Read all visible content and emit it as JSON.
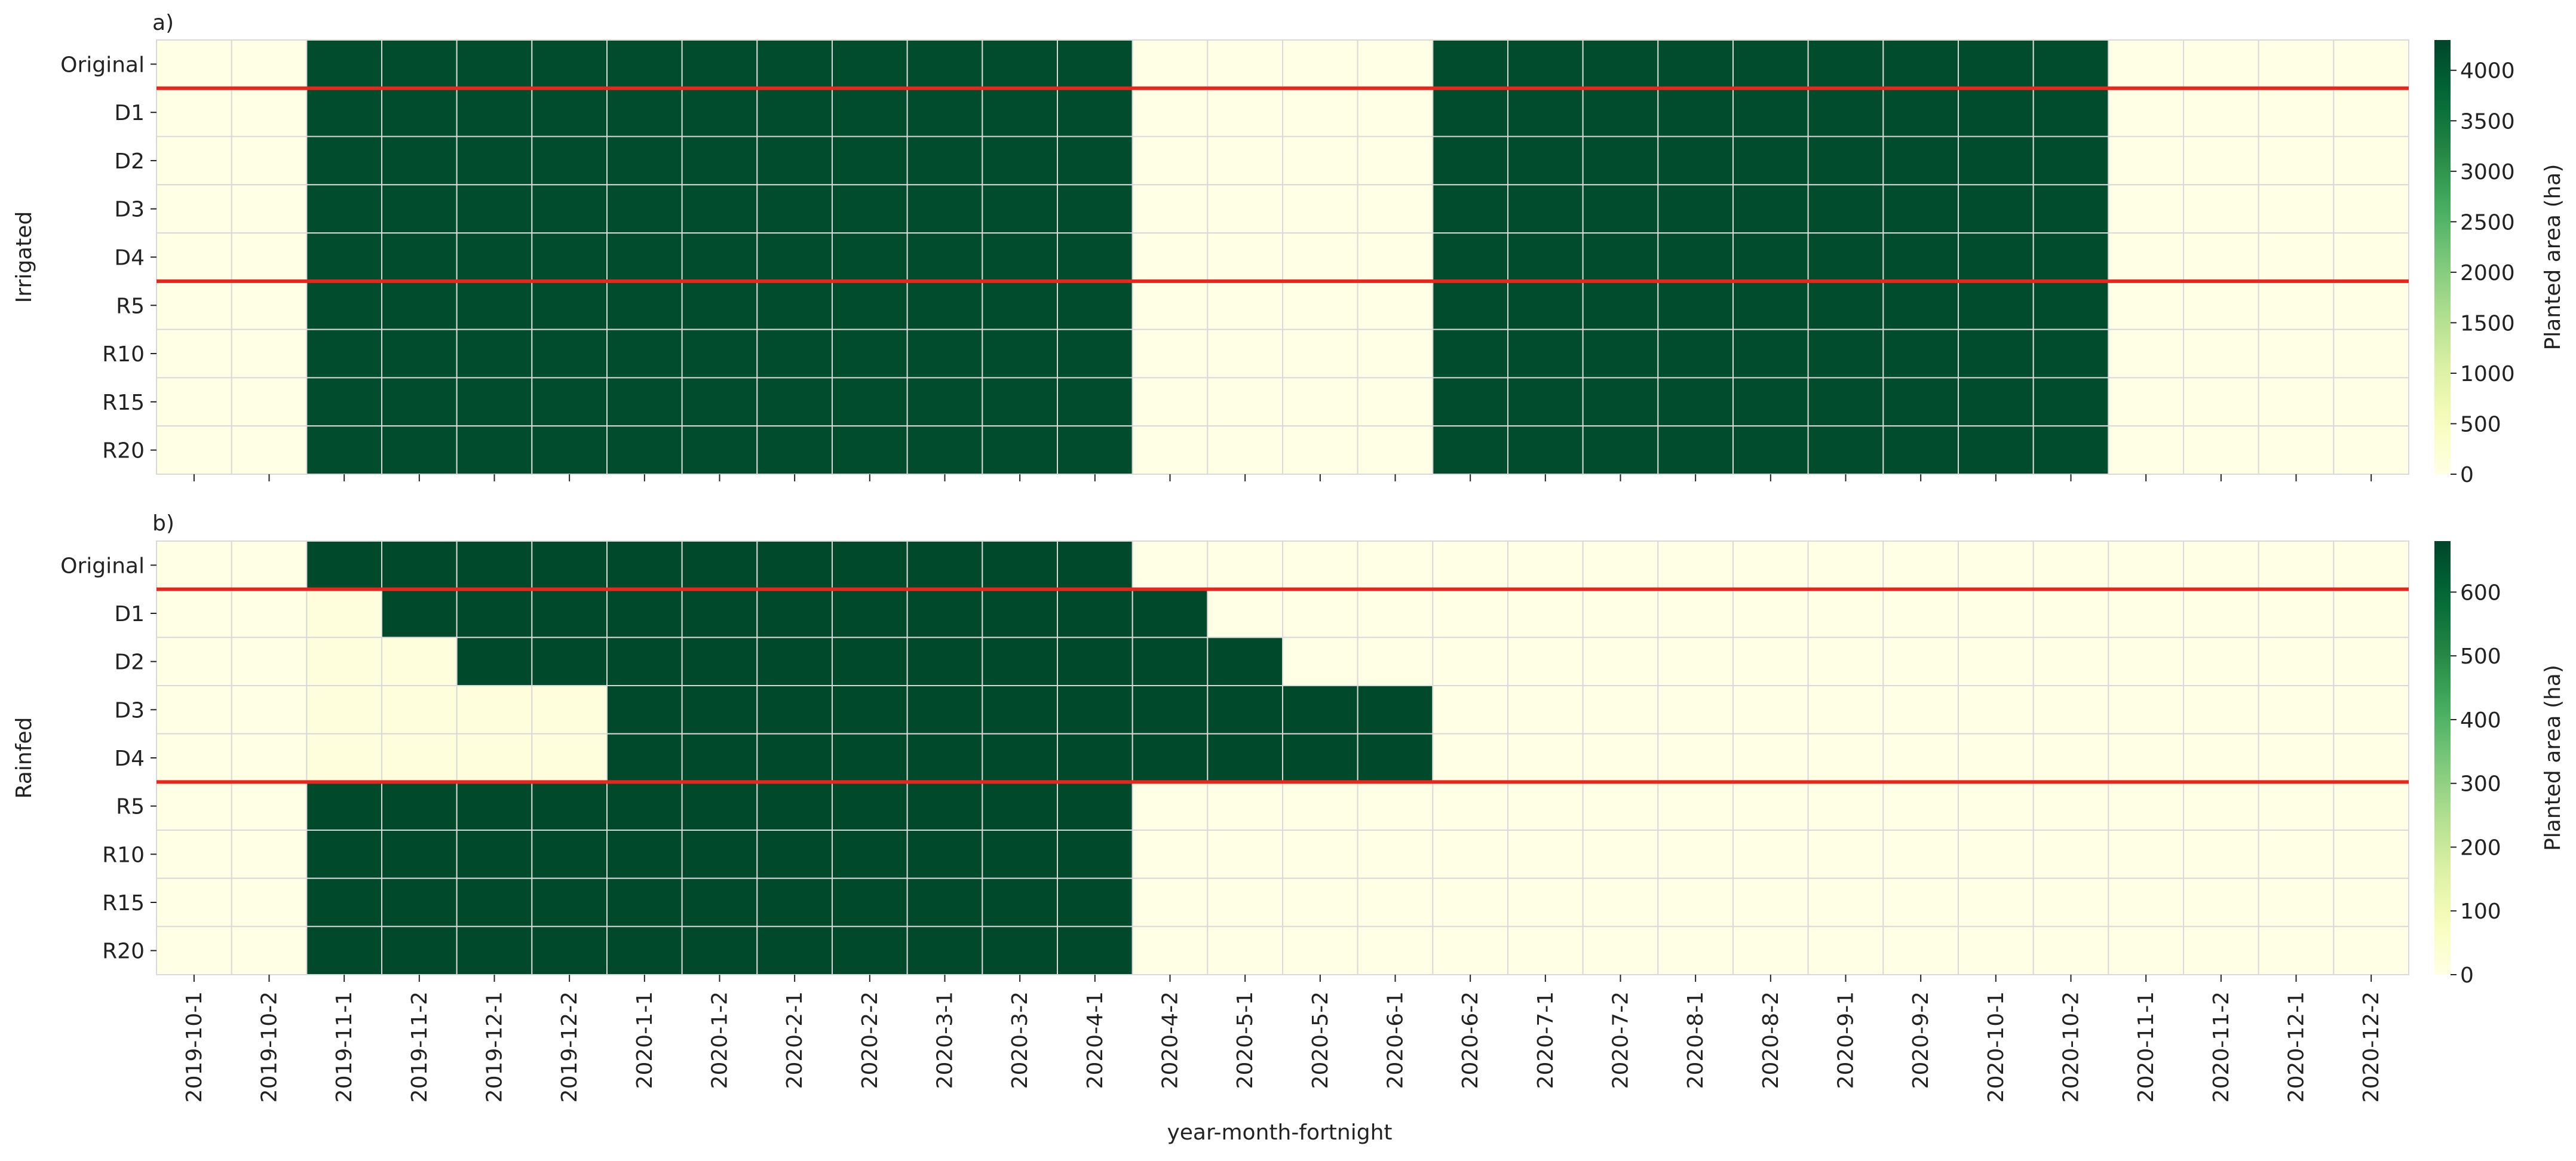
{
  "chart_data": [
    {
      "type": "heatmap",
      "panel_label": "a)",
      "group_label": "Irrigated",
      "rows": [
        "Original",
        "D1",
        "D2",
        "D3",
        "D4",
        "R5",
        "R10",
        "R15",
        "R20"
      ],
      "columns": [
        "2019-10-1",
        "2019-10-2",
        "2019-11-1",
        "2019-11-2",
        "2019-12-1",
        "2019-12-2",
        "2020-1-1",
        "2020-1-2",
        "2020-2-1",
        "2020-2-2",
        "2020-3-1",
        "2020-3-2",
        "2020-4-1",
        "2020-4-2",
        "2020-5-1",
        "2020-5-2",
        "2020-6-1",
        "2020-6-2",
        "2020-7-1",
        "2020-7-2",
        "2020-8-1",
        "2020-8-2",
        "2020-9-1",
        "2020-9-2",
        "2020-10-1",
        "2020-10-2",
        "2020-11-1",
        "2020-11-2",
        "2020-12-1",
        "2020-12-2"
      ],
      "values": [
        [
          0,
          0,
          4200,
          4200,
          4200,
          4200,
          4200,
          4200,
          4200,
          4200,
          4200,
          4200,
          4200,
          0,
          0,
          0,
          0,
          4200,
          4200,
          4200,
          4200,
          4200,
          4200,
          4200,
          4200,
          4200,
          0,
          0,
          0,
          0
        ],
        [
          0,
          0,
          4200,
          4200,
          4200,
          4200,
          4200,
          4200,
          4200,
          4200,
          4200,
          4200,
          4200,
          0,
          0,
          0,
          0,
          4200,
          4200,
          4200,
          4200,
          4200,
          4200,
          4200,
          4200,
          4200,
          0,
          0,
          0,
          0
        ],
        [
          0,
          0,
          4200,
          4200,
          4200,
          4200,
          4200,
          4200,
          4200,
          4200,
          4200,
          4200,
          4200,
          0,
          0,
          0,
          0,
          4200,
          4200,
          4200,
          4200,
          4200,
          4200,
          4200,
          4200,
          4200,
          0,
          0,
          0,
          0
        ],
        [
          0,
          0,
          4200,
          4200,
          4200,
          4200,
          4200,
          4200,
          4200,
          4200,
          4200,
          4200,
          4200,
          0,
          0,
          0,
          0,
          4200,
          4200,
          4200,
          4200,
          4200,
          4200,
          4200,
          4200,
          4200,
          0,
          0,
          0,
          0
        ],
        [
          0,
          0,
          4200,
          4200,
          4200,
          4200,
          4200,
          4200,
          4200,
          4200,
          4200,
          4200,
          4200,
          0,
          0,
          0,
          0,
          4200,
          4200,
          4200,
          4200,
          4200,
          4200,
          4200,
          4200,
          4200,
          0,
          0,
          0,
          0
        ],
        [
          0,
          0,
          4200,
          4200,
          4200,
          4200,
          4200,
          4200,
          4200,
          4200,
          4200,
          4200,
          4200,
          0,
          0,
          0,
          0,
          4200,
          4200,
          4200,
          4200,
          4200,
          4200,
          4200,
          4200,
          4200,
          0,
          0,
          0,
          0
        ],
        [
          0,
          0,
          4200,
          4200,
          4200,
          4200,
          4200,
          4200,
          4200,
          4200,
          4200,
          4200,
          4200,
          0,
          0,
          0,
          0,
          4200,
          4200,
          4200,
          4200,
          4200,
          4200,
          4200,
          4200,
          4200,
          0,
          0,
          0,
          0
        ],
        [
          0,
          0,
          4200,
          4200,
          4200,
          4200,
          4200,
          4200,
          4200,
          4200,
          4200,
          4200,
          4200,
          0,
          0,
          0,
          0,
          4200,
          4200,
          4200,
          4200,
          4200,
          4200,
          4200,
          4200,
          4200,
          0,
          0,
          0,
          0
        ],
        [
          0,
          0,
          4200,
          4200,
          4200,
          4200,
          4200,
          4200,
          4200,
          4200,
          4200,
          4200,
          4200,
          0,
          0,
          0,
          0,
          4200,
          4200,
          4200,
          4200,
          4200,
          4200,
          4200,
          4200,
          4200,
          0,
          0,
          0,
          0
        ]
      ],
      "separator_after_rows": [
        "Original",
        "D4"
      ],
      "separator_color": "#e8261d",
      "colorbar": {
        "label": "Planted area (ha)",
        "vmin": 0,
        "vmax": 4300,
        "ticks": [
          0,
          500,
          1000,
          1500,
          2000,
          2500,
          3000,
          3500,
          4000
        ],
        "colormap": "YlGn"
      }
    },
    {
      "type": "heatmap",
      "panel_label": "b)",
      "group_label": "Rainfed",
      "rows": [
        "Original",
        "D1",
        "D2",
        "D3",
        "D4",
        "R5",
        "R10",
        "R15",
        "R20"
      ],
      "columns": [
        "2019-10-1",
        "2019-10-2",
        "2019-11-1",
        "2019-11-2",
        "2019-12-1",
        "2019-12-2",
        "2020-1-1",
        "2020-1-2",
        "2020-2-1",
        "2020-2-2",
        "2020-3-1",
        "2020-3-2",
        "2020-4-1",
        "2020-4-2",
        "2020-5-1",
        "2020-5-2",
        "2020-6-1",
        "2020-6-2",
        "2020-7-1",
        "2020-7-2",
        "2020-8-1",
        "2020-8-2",
        "2020-9-1",
        "2020-9-2",
        "2020-10-1",
        "2020-10-2",
        "2020-11-1",
        "2020-11-2",
        "2020-12-1",
        "2020-12-2"
      ],
      "values": [
        [
          0,
          0,
          670,
          670,
          670,
          670,
          670,
          670,
          670,
          670,
          670,
          670,
          670,
          0,
          0,
          0,
          0,
          0,
          0,
          0,
          0,
          0,
          0,
          0,
          0,
          0,
          0,
          0,
          0,
          0
        ],
        [
          0,
          0,
          15,
          670,
          670,
          670,
          670,
          670,
          670,
          670,
          670,
          670,
          670,
          670,
          0,
          0,
          0,
          0,
          0,
          0,
          0,
          0,
          0,
          0,
          0,
          0,
          0,
          0,
          0,
          0
        ],
        [
          0,
          0,
          15,
          15,
          670,
          670,
          670,
          670,
          670,
          670,
          670,
          670,
          670,
          670,
          670,
          0,
          0,
          0,
          0,
          0,
          0,
          0,
          0,
          0,
          0,
          0,
          0,
          0,
          0,
          0
        ],
        [
          0,
          0,
          15,
          15,
          15,
          15,
          670,
          670,
          670,
          670,
          670,
          670,
          670,
          670,
          670,
          670,
          670,
          0,
          0,
          0,
          0,
          0,
          0,
          0,
          0,
          0,
          0,
          0,
          0,
          0
        ],
        [
          0,
          0,
          15,
          15,
          15,
          15,
          670,
          670,
          670,
          670,
          670,
          670,
          670,
          670,
          670,
          670,
          670,
          0,
          0,
          0,
          0,
          0,
          0,
          0,
          0,
          0,
          0,
          0,
          0,
          0
        ],
        [
          0,
          0,
          670,
          670,
          670,
          670,
          670,
          670,
          670,
          670,
          670,
          670,
          670,
          0,
          0,
          0,
          0,
          0,
          0,
          0,
          0,
          0,
          0,
          0,
          0,
          0,
          0,
          0,
          0,
          0
        ],
        [
          0,
          0,
          670,
          670,
          670,
          670,
          670,
          670,
          670,
          670,
          670,
          670,
          670,
          0,
          0,
          0,
          0,
          0,
          0,
          0,
          0,
          0,
          0,
          0,
          0,
          0,
          0,
          0,
          0,
          0
        ],
        [
          0,
          0,
          670,
          670,
          670,
          670,
          670,
          670,
          670,
          670,
          670,
          670,
          670,
          0,
          0,
          0,
          0,
          0,
          0,
          0,
          0,
          0,
          0,
          0,
          0,
          0,
          0,
          0,
          0,
          0
        ],
        [
          0,
          0,
          670,
          670,
          670,
          670,
          670,
          670,
          670,
          670,
          670,
          670,
          670,
          0,
          0,
          0,
          0,
          0,
          0,
          0,
          0,
          0,
          0,
          0,
          0,
          0,
          0,
          0,
          0,
          0
        ]
      ],
      "separator_after_rows": [
        "Original",
        "D4"
      ],
      "separator_color": "#e8261d",
      "colorbar": {
        "label": "Planted area (ha)",
        "vmin": 0,
        "vmax": 680,
        "ticks": [
          0,
          100,
          200,
          300,
          400,
          500,
          600
        ],
        "colormap": "YlGn"
      }
    }
  ],
  "x_axis_label": "year-month-fortnight"
}
